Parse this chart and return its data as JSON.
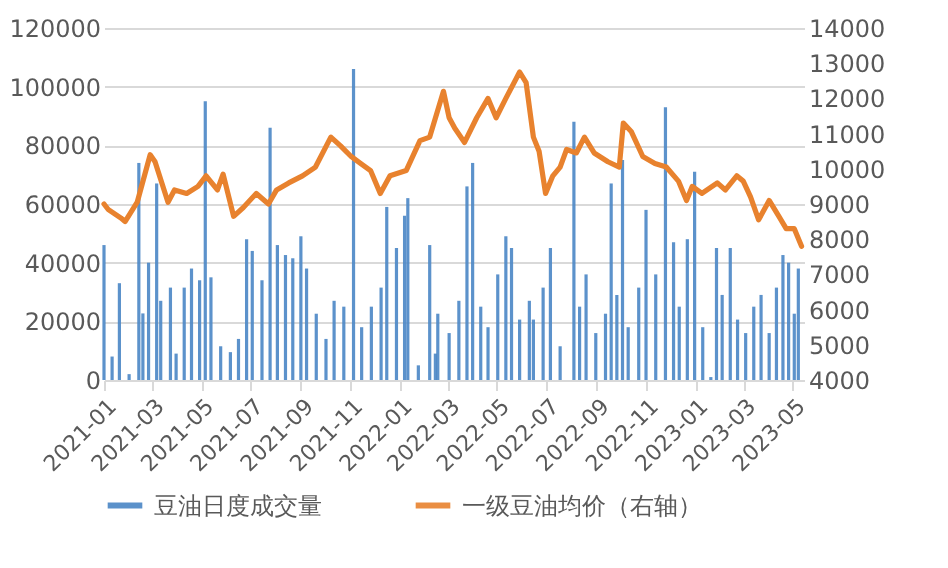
{
  "chart_data": {
    "type": "bar",
    "xlim": [
      "2021-01-01",
      "2023-05-15"
    ],
    "xticks": [
      "2021-01",
      "2021-03",
      "2021-05",
      "2021-07",
      "2021-09",
      "2021-11",
      "2022-01",
      "2022-03",
      "2022-05",
      "2022-07",
      "2022-09",
      "2022-11",
      "2023-01",
      "2023-03",
      "2023-05"
    ],
    "ylim": [
      0,
      120000
    ],
    "yticks": [
      0,
      20000,
      40000,
      60000,
      80000,
      100000,
      120000
    ],
    "y2lim": [
      4000,
      14000
    ],
    "y2ticks": [
      4000,
      5000,
      6000,
      7000,
      8000,
      9000,
      10000,
      11000,
      12000,
      13000,
      14000
    ],
    "grid": "y",
    "legend": "bottom",
    "series": [
      {
        "name": "豆油日度成交量",
        "color": "#4a86c5",
        "x": [
          "2021-01-01",
          "2021-01-11",
          "2021-01-20",
          "2021-02-01",
          "2021-02-13",
          "2021-02-18",
          "2021-02-25",
          "2021-03-07",
          "2021-03-12",
          "2021-03-24",
          "2021-03-31",
          "2021-04-10",
          "2021-04-19",
          "2021-04-29",
          "2021-05-06",
          "2021-05-13",
          "2021-05-25",
          "2021-06-06",
          "2021-06-16",
          "2021-06-26",
          "2021-07-03",
          "2021-07-15",
          "2021-07-25",
          "2021-08-03",
          "2021-08-13",
          "2021-08-22",
          "2021-09-01",
          "2021-09-08",
          "2021-09-20",
          "2021-10-02",
          "2021-10-12",
          "2021-10-24",
          "2021-11-05",
          "2021-11-15",
          "2021-11-27",
          "2021-12-09",
          "2021-12-16",
          "2021-12-28",
          "2022-01-07",
          "2022-01-11",
          "2022-01-24",
          "2022-02-07",
          "2022-02-14",
          "2022-02-17",
          "2022-03-03",
          "2022-03-15",
          "2022-03-25",
          "2022-04-01",
          "2022-04-11",
          "2022-04-20",
          "2022-05-02",
          "2022-05-12",
          "2022-05-19",
          "2022-05-29",
          "2022-06-10",
          "2022-06-15",
          "2022-06-27",
          "2022-07-06",
          "2022-07-18",
          "2022-08-04",
          "2022-08-11",
          "2022-08-19",
          "2022-08-31",
          "2022-09-12",
          "2022-09-19",
          "2022-09-26",
          "2022-10-03",
          "2022-10-10",
          "2022-10-23",
          "2022-11-01",
          "2022-11-13",
          "2022-11-25",
          "2022-12-05",
          "2022-12-12",
          "2022-12-22",
          "2022-12-31",
          "2023-01-10",
          "2023-01-20",
          "2023-01-27",
          "2023-02-03",
          "2023-02-13",
          "2023-02-22",
          "2023-03-04",
          "2023-03-14",
          "2023-03-23",
          "2023-04-02",
          "2023-04-11",
          "2023-04-19",
          "2023-04-26",
          "2023-05-03",
          "2023-05-08"
        ],
        "values": [
          46000,
          8000,
          33000,
          2000,
          74000,
          22700,
          40000,
          67000,
          27000,
          31500,
          9000,
          31500,
          38000,
          34000,
          95000,
          35000,
          11500,
          9500,
          14000,
          48000,
          44000,
          34000,
          86000,
          46000,
          42600,
          41500,
          49000,
          38000,
          22600,
          14000,
          27000,
          25000,
          106000,
          18000,
          25000,
          31500,
          59000,
          45000,
          56000,
          62000,
          5000,
          46000,
          9000,
          22600,
          16000,
          27000,
          66000,
          74000,
          25000,
          18000,
          36000,
          49000,
          45000,
          20600,
          27000,
          20600,
          31500,
          45000,
          11500,
          88000,
          25000,
          36000,
          16000,
          22600,
          67000,
          29000,
          75000,
          18000,
          31500,
          58000,
          36000,
          93000,
          47000,
          25000,
          48000,
          71000,
          18000,
          1000,
          45000,
          29000,
          45000,
          20600,
          16000,
          25000,
          29000,
          16000,
          31500,
          42600,
          40000,
          22600,
          38000
        ]
      },
      {
        "name": "一级豆油均价（右轴）",
        "type": "line",
        "axis": "y2",
        "color": "#e8822e",
        "x": [
          "2021-01-01",
          "2021-01-06",
          "2021-01-22",
          "2021-01-27",
          "2021-02-11",
          "2021-02-27",
          "2021-03-05",
          "2021-03-21",
          "2021-03-29",
          "2021-04-13",
          "2021-04-27",
          "2021-05-07",
          "2021-05-21",
          "2021-05-28",
          "2021-06-10",
          "2021-06-22",
          "2021-07-08",
          "2021-07-23",
          "2021-08-02",
          "2021-08-17",
          "2021-09-03",
          "2021-09-19",
          "2021-10-08",
          "2021-10-20",
          "2021-11-02",
          "2021-11-14",
          "2021-11-26",
          "2021-12-08",
          "2021-12-20",
          "2022-01-09",
          "2022-01-26",
          "2022-02-07",
          "2022-02-24",
          "2022-03-03",
          "2022-03-10",
          "2022-03-22",
          "2022-04-06",
          "2022-04-20",
          "2022-04-30",
          "2022-05-12",
          "2022-05-29",
          "2022-06-06",
          "2022-06-15",
          "2022-06-22",
          "2022-06-30",
          "2022-07-09",
          "2022-07-18",
          "2022-07-26",
          "2022-08-07",
          "2022-08-17",
          "2022-08-29",
          "2022-09-15",
          "2022-09-29",
          "2022-10-04",
          "2022-10-14",
          "2022-10-28",
          "2022-11-12",
          "2022-11-26",
          "2022-12-11",
          "2022-12-21",
          "2022-12-28",
          "2023-01-09",
          "2023-01-28",
          "2023-02-07",
          "2023-02-21",
          "2023-03-01",
          "2023-03-10",
          "2023-03-20",
          "2023-04-02",
          "2023-04-14",
          "2023-04-23",
          "2023-05-03",
          "2023-05-12"
        ],
        "values": [
          9000,
          8850,
          8600,
          8500,
          9050,
          10400,
          10200,
          9050,
          9400,
          9300,
          9500,
          9800,
          9400,
          9850,
          8650,
          8900,
          9300,
          9000,
          9400,
          9600,
          9800,
          10050,
          10900,
          10650,
          10350,
          10150,
          9950,
          9300,
          9800,
          9950,
          10800,
          10900,
          12200,
          11450,
          11150,
          10750,
          11450,
          12000,
          11450,
          12000,
          12750,
          12450,
          10900,
          10500,
          9300,
          9800,
          10050,
          10550,
          10450,
          10900,
          10450,
          10200,
          10050,
          11300,
          11050,
          10350,
          10150,
          10050,
          9650,
          9100,
          9500,
          9300,
          9600,
          9400,
          9800,
          9650,
          9200,
          8550,
          9100,
          8650,
          8300,
          8300,
          7800
        ]
      }
    ]
  }
}
